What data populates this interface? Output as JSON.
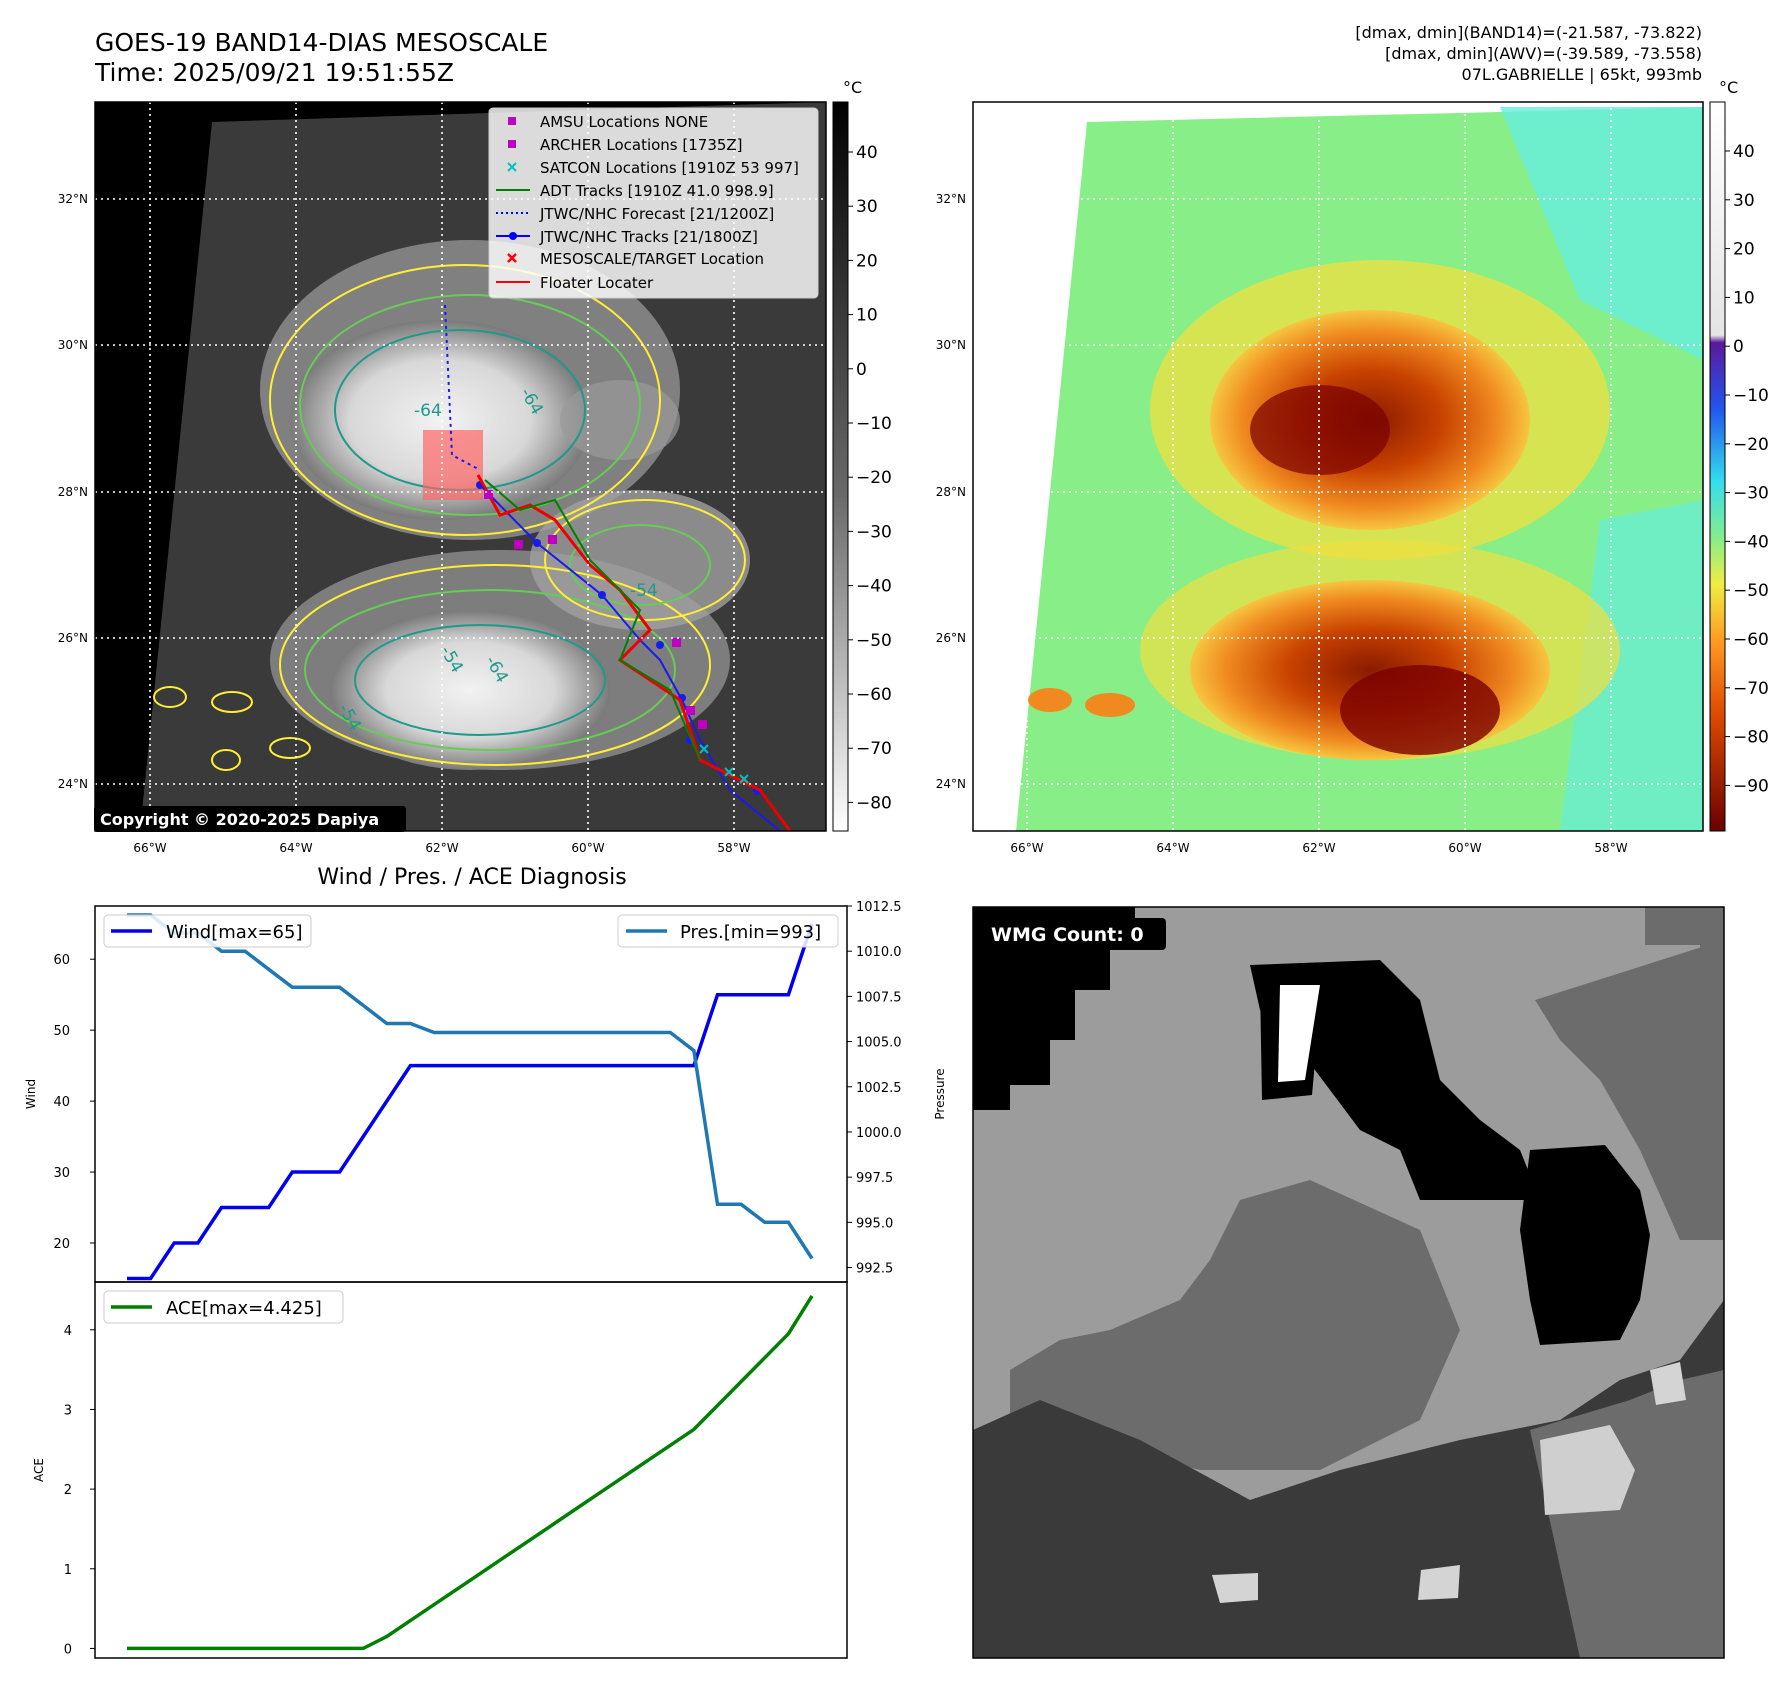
{
  "header": {
    "title_line1": "GOES-19 BAND14-DIAS MESOSCALE",
    "title_line2": "Time: 2025/09/21 19:51:55Z",
    "stats_line1": "[dmax, dmin](BAND14)=(-21.587, -73.822)",
    "stats_line2": "[dmax, dmin](AWV)=(-39.589, -73.558)",
    "stats_line3": "07L.GABRIELLE | 65kt, 993mb"
  },
  "map_panel": {
    "lon_ticks": [
      "66°W",
      "64°W",
      "62°W",
      "60°W",
      "58°W"
    ],
    "lat_ticks": [
      "32°N",
      "30°N",
      "28°N",
      "26°N",
      "24°N"
    ],
    "copyright": "Copyright © 2020-2025 Dapiya",
    "contour_labels": [
      "-64",
      "-64",
      "-54",
      "-54",
      "-64",
      "-54"
    ],
    "legend": [
      {
        "label": "AMSU Locations NONE",
        "marker": "square",
        "color": "#c000c0"
      },
      {
        "label": "ARCHER Locations [1735Z]",
        "marker": "square",
        "color": "#c000c0"
      },
      {
        "label": "SATCON Locations [1910Z 53 997]",
        "marker": "x",
        "color": "#00c0c0"
      },
      {
        "label": "ADT Tracks [1910Z 41.0 998.9]",
        "marker": "line",
        "color": "#008000"
      },
      {
        "label": "JTWC/NHC Forecast [21/1200Z]",
        "marker": "dotted",
        "color": "#0000ff"
      },
      {
        "label": "JTWC/NHC Tracks [21/1800Z]",
        "marker": "line-dot",
        "color": "#0000ff"
      },
      {
        "label": "MESOSCALE/TARGET Location",
        "marker": "x",
        "color": "#ff0000"
      },
      {
        "label": "Floater Locater",
        "marker": "line",
        "color": "#ff0000"
      }
    ]
  },
  "colorbar_band14": {
    "unit": "°C",
    "ticks": [
      "40",
      "30",
      "20",
      "10",
      "0",
      "−10",
      "−20",
      "−30",
      "−40",
      "−50",
      "−60",
      "−70",
      "−80"
    ]
  },
  "colorbar_awv": {
    "unit": "°C",
    "ticks": [
      "40",
      "30",
      "20",
      "10",
      "0",
      "−10",
      "−20",
      "−30",
      "−40",
      "−50",
      "−60",
      "−70",
      "−80",
      "−90"
    ]
  },
  "wmg_panel": {
    "label": "WMG Count: 0"
  },
  "chart_data": [
    {
      "type": "line",
      "title": "Wind / Pres. / ACE Diagnosis",
      "ylabel": "Wind",
      "ylabel_right": "Pressure",
      "ylim": [
        14.5,
        67.5
      ],
      "ylim_right": [
        991.7,
        1012.5
      ],
      "yticks": [
        "20",
        "30",
        "40",
        "50",
        "60"
      ],
      "yticks_right": [
        "992.5",
        "995.0",
        "997.5",
        "1000.0",
        "1002.5",
        "1005.0",
        "1007.5",
        "1010.0",
        "1012.5"
      ],
      "x": [
        0,
        1,
        2,
        3,
        4,
        5,
        6,
        7,
        8,
        9,
        10,
        11,
        12,
        13,
        14,
        15,
        16,
        17,
        18,
        19,
        20,
        21,
        22,
        23,
        24,
        25,
        26,
        27,
        28,
        29
      ],
      "series": [
        {
          "name": "Wind[max=65]",
          "axis": "left",
          "color": "#0000ee",
          "values": [
            15,
            15,
            20,
            20,
            25,
            25,
            25,
            30,
            30,
            30,
            35,
            40,
            45,
            45,
            45,
            45,
            45,
            45,
            45,
            45,
            45,
            45,
            45,
            45,
            45,
            55,
            55,
            55,
            55,
            65
          ]
        },
        {
          "name": "Pres.[min=993]",
          "axis": "right",
          "color": "#1f77b4",
          "values": [
            1012,
            1012,
            1011,
            1011,
            1010,
            1010,
            1009,
            1008,
            1008,
            1008,
            1007,
            1006,
            1006,
            1005.5,
            1005.5,
            1005.5,
            1005.5,
            1005.5,
            1005.5,
            1005.5,
            1005.5,
            1005.5,
            1005.5,
            1005.5,
            1004.5,
            996,
            996,
            995,
            995,
            993
          ]
        }
      ]
    },
    {
      "type": "line",
      "title": "",
      "ylabel": "ACE",
      "ylim": [
        -0.12,
        4.6
      ],
      "yticks": [
        "0",
        "1",
        "2",
        "3",
        "4"
      ],
      "x": [
        0,
        1,
        2,
        3,
        4,
        5,
        6,
        7,
        8,
        9,
        10,
        11,
        12,
        13,
        14,
        15,
        16,
        17,
        18,
        19,
        20,
        21,
        22,
        23,
        24,
        25,
        26,
        27,
        28,
        29
      ],
      "series": [
        {
          "name": "ACE[max=4.425]",
          "color": "#008000",
          "values": [
            0,
            0,
            0,
            0,
            0,
            0,
            0,
            0,
            0,
            0,
            0,
            0.15,
            0.35,
            0.55,
            0.75,
            0.95,
            1.15,
            1.35,
            1.55,
            1.75,
            1.95,
            2.15,
            2.35,
            2.55,
            2.75,
            3.05,
            3.35,
            3.65,
            3.95,
            4.425
          ]
        }
      ]
    }
  ]
}
